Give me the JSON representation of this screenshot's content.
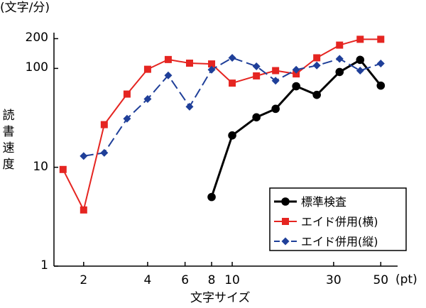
{
  "chart_data": {
    "type": "line",
    "title": "",
    "y_unit_label": "(文字/分)",
    "x_unit_label": "(pt)",
    "xlabel": "文字サイズ",
    "ylabel": "読書速度",
    "xscale": "log",
    "yscale": "log",
    "xlim": [
      1.45,
      60
    ],
    "ylim": [
      1,
      230
    ],
    "xticks": [
      2,
      4,
      6,
      8,
      10,
      30,
      50
    ],
    "xtick_labels": [
      "2",
      "4",
      "6",
      "8",
      "10",
      "30",
      "50"
    ],
    "yticks": [
      1,
      10,
      100,
      200
    ],
    "ytick_labels": [
      "1",
      "10",
      "100",
      "200"
    ],
    "legend_position": "bottom-right",
    "series": [
      {
        "name": "標準検査",
        "color": "#000000",
        "marker": "circle",
        "dash": false,
        "points": [
          [
            8,
            5
          ],
          [
            10,
            21
          ],
          [
            13,
            32
          ],
          [
            16,
            39
          ],
          [
            20,
            66
          ],
          [
            25,
            54
          ],
          [
            32,
            92
          ],
          [
            40,
            122
          ],
          [
            50,
            67
          ]
        ]
      },
      {
        "name": "エイド併用(横)",
        "color": "#e52521",
        "marker": "square",
        "dash": false,
        "points": [
          [
            1.6,
            9.5
          ],
          [
            2.0,
            3.7
          ],
          [
            2.5,
            27
          ],
          [
            3.2,
            55
          ],
          [
            4.0,
            98
          ],
          [
            5.0,
            123
          ],
          [
            6.3,
            113
          ],
          [
            8.0,
            111
          ],
          [
            10,
            71
          ],
          [
            13,
            84
          ],
          [
            16,
            95
          ],
          [
            20,
            88
          ],
          [
            25,
            128
          ],
          [
            32,
            172
          ],
          [
            40,
            197
          ],
          [
            50,
            197
          ]
        ]
      },
      {
        "name": "エイド併用(縦)",
        "color": "#1f3f99",
        "marker": "diamond",
        "dash": true,
        "points": [
          [
            2.0,
            13
          ],
          [
            2.5,
            14
          ],
          [
            3.2,
            31
          ],
          [
            4.0,
            49
          ],
          [
            5.0,
            85
          ],
          [
            6.3,
            41
          ],
          [
            8.0,
            97
          ],
          [
            10,
            128
          ],
          [
            13,
            105
          ],
          [
            16,
            75
          ],
          [
            20,
            97
          ],
          [
            25,
            107
          ],
          [
            32,
            125
          ],
          [
            40,
            95
          ],
          [
            50,
            112
          ]
        ]
      }
    ]
  }
}
